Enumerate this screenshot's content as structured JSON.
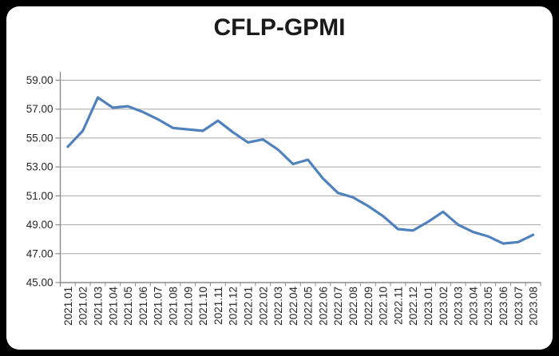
{
  "window": {
    "background_color": "#000000",
    "card_color": "#ffffff"
  },
  "chart_data": {
    "type": "line",
    "title": "CFLP-GPMI",
    "xlabel": "",
    "ylabel": "",
    "ylim": [
      45,
      59
    ],
    "ytick_step": 2,
    "ytick_labels": [
      "45.00",
      "47.00",
      "49.00",
      "51.00",
      "53.00",
      "55.00",
      "57.00",
      "59.00"
    ],
    "grid": true,
    "legend_position": "none",
    "x_tick_label_rotation": -90,
    "categories": [
      "2021.01",
      "2021.02",
      "2021.03",
      "2021.04",
      "2021.05",
      "2021.06",
      "2021.07",
      "2021.08",
      "2021.09",
      "2021.10",
      "2021.11",
      "2021.12",
      "2022.01",
      "2022.02",
      "2022.03",
      "2022.04",
      "2022.05",
      "2022.06",
      "2022.07",
      "2022.08",
      "2022.09",
      "2022.10",
      "2022.11",
      "2022.12",
      "2023.01",
      "2023.02",
      "2023.03",
      "2023.04",
      "2023.05",
      "2023.06",
      "2023.07",
      "2023.08"
    ],
    "series": [
      {
        "name": "CFLP-GPMI",
        "color": "#4F81BD",
        "values": [
          54.4,
          55.5,
          57.8,
          57.1,
          57.2,
          56.8,
          56.3,
          55.7,
          55.6,
          55.5,
          56.2,
          55.4,
          54.7,
          54.9,
          54.2,
          53.2,
          53.5,
          52.2,
          51.2,
          50.9,
          50.3,
          49.6,
          48.7,
          48.6,
          49.2,
          49.9,
          49.0,
          48.5,
          48.2,
          47.7,
          47.8,
          48.3
        ]
      }
    ],
    "colors": {
      "grid_color": "#a6a6a6",
      "axis_color": "#8c8c8c",
      "tick_color": "#8c8c8c",
      "label_color": "#262626",
      "title_color": "#1a1a1a"
    }
  }
}
